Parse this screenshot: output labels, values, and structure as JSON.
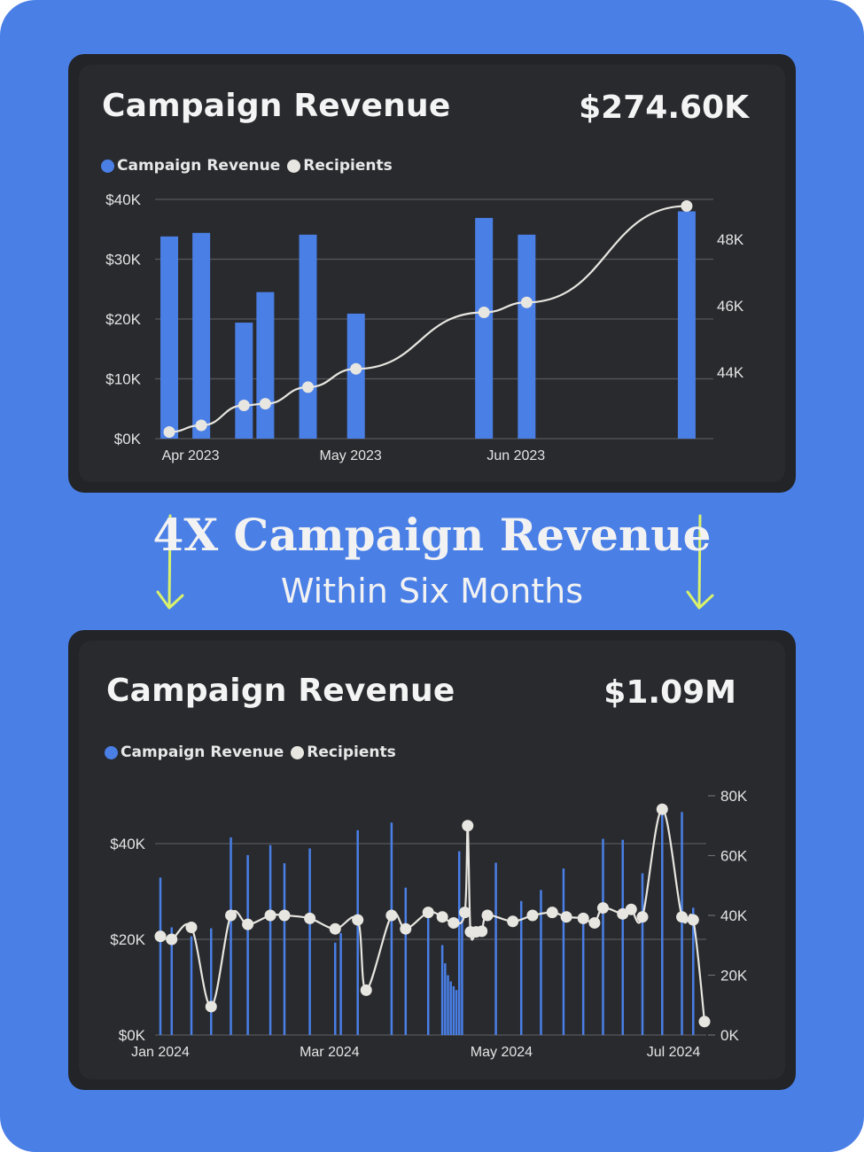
{
  "headline": "4X Campaign Revenue",
  "subheadline": "Within Six Months",
  "colors": {
    "bar": "#4a7fe6",
    "line": "#e8e6e0",
    "arrow": "#d9f26a",
    "background": "#4a7fe6",
    "card": "#282a2e"
  },
  "cards": [
    {
      "title": "Campaign Revenue",
      "total": "$274.60K",
      "legend": [
        "Campaign Revenue",
        "Recipients"
      ]
    },
    {
      "title": "Campaign Revenue",
      "total": "$1.09M",
      "legend": [
        "Campaign Revenue",
        "Recipients"
      ]
    }
  ],
  "chart_data": [
    {
      "type": "bar",
      "title": "Campaign Revenue",
      "x_range": [
        "2023-03-27",
        "2023-07-07"
      ],
      "x_ticks": [
        {
          "date": "2023-04-01",
          "label": "Apr 2023"
        },
        {
          "date": "2023-05-01",
          "label": "May 2023"
        },
        {
          "date": "2023-06-01",
          "label": "Jun 2023"
        }
      ],
      "y_left": {
        "min": 0,
        "max": 40000,
        "ticks": [
          0,
          10000,
          20000,
          30000,
          40000
        ],
        "labels": [
          "$0K",
          "$10K",
          "$20K",
          "$30K",
          "$40K"
        ]
      },
      "y_right": {
        "min": 42000,
        "max": 49200,
        "ticks": [
          44000,
          46000,
          48000
        ],
        "labels": [
          "44K",
          "46K",
          "48K"
        ]
      },
      "series": [
        {
          "name": "Campaign Revenue",
          "type": "bar",
          "axis": "left",
          "points": [
            {
              "date": "2023-03-28",
              "value": 33800
            },
            {
              "date": "2023-04-03",
              "value": 34400
            },
            {
              "date": "2023-04-11",
              "value": 19400
            },
            {
              "date": "2023-04-15",
              "value": 24500
            },
            {
              "date": "2023-04-23",
              "value": 34100
            },
            {
              "date": "2023-05-02",
              "value": 20900
            },
            {
              "date": "2023-05-26",
              "value": 36900
            },
            {
              "date": "2023-06-03",
              "value": 34100
            },
            {
              "date": "2023-07-03",
              "value": 38000
            }
          ]
        },
        {
          "name": "Recipients",
          "type": "line",
          "axis": "right",
          "points": [
            {
              "date": "2023-03-28",
              "value": 42200
            },
            {
              "date": "2023-04-03",
              "value": 42400
            },
            {
              "date": "2023-04-11",
              "value": 43000
            },
            {
              "date": "2023-04-15",
              "value": 43050
            },
            {
              "date": "2023-04-23",
              "value": 43550
            },
            {
              "date": "2023-05-02",
              "value": 44100
            },
            {
              "date": "2023-05-26",
              "value": 45800
            },
            {
              "date": "2023-06-03",
              "value": 46100
            },
            {
              "date": "2023-07-03",
              "value": 49000
            }
          ]
        }
      ]
    },
    {
      "type": "bar",
      "title": "Campaign Revenue",
      "x_range": [
        "2024-01-01",
        "2024-07-12"
      ],
      "x_ticks": [
        {
          "date": "2024-01-01",
          "label": "Jan 2024"
        },
        {
          "date": "2024-03-01",
          "label": "Mar 2024"
        },
        {
          "date": "2024-05-01",
          "label": "May 2024"
        },
        {
          "date": "2024-07-01",
          "label": "Jul 2024"
        }
      ],
      "y_left": {
        "min": 0,
        "max": 50000,
        "ticks": [
          0,
          20000,
          40000
        ],
        "labels": [
          "$0K",
          "$20K",
          "$40K"
        ]
      },
      "y_right": {
        "min": 0,
        "max": 80000,
        "ticks": [
          0,
          20000,
          40000,
          60000,
          80000
        ],
        "labels": [
          "0K",
          "20K",
          "40K",
          "60K",
          "80K"
        ]
      },
      "series": [
        {
          "name": "Campaign Revenue",
          "type": "bar",
          "axis": "left",
          "points": [
            {
              "date": "2024-01-01",
              "value": 32900
            },
            {
              "date": "2024-01-05",
              "value": 22500
            },
            {
              "date": "2024-01-12",
              "value": 20600
            },
            {
              "date": "2024-01-19",
              "value": 22300
            },
            {
              "date": "2024-01-26",
              "value": 41300
            },
            {
              "date": "2024-02-01",
              "value": 37600
            },
            {
              "date": "2024-02-09",
              "value": 39700
            },
            {
              "date": "2024-02-14",
              "value": 35900
            },
            {
              "date": "2024-02-23",
              "value": 39000
            },
            {
              "date": "2024-03-03",
              "value": 19300
            },
            {
              "date": "2024-03-05",
              "value": 21300
            },
            {
              "date": "2024-03-11",
              "value": 42800
            },
            {
              "date": "2024-03-23",
              "value": 44400
            },
            {
              "date": "2024-03-28",
              "value": 30800
            },
            {
              "date": "2024-04-05",
              "value": 24600
            },
            {
              "date": "2024-04-10",
              "value": 18800
            },
            {
              "date": "2024-04-11",
              "value": 15000
            },
            {
              "date": "2024-04-12",
              "value": 12500
            },
            {
              "date": "2024-04-13",
              "value": 11200
            },
            {
              "date": "2024-04-14",
              "value": 10200
            },
            {
              "date": "2024-04-15",
              "value": 9400
            },
            {
              "date": "2024-04-16",
              "value": 38400
            },
            {
              "date": "2024-04-17",
              "value": 26600
            },
            {
              "date": "2024-04-29",
              "value": 36000
            },
            {
              "date": "2024-05-08",
              "value": 28000
            },
            {
              "date": "2024-05-15",
              "value": 30300
            },
            {
              "date": "2024-05-23",
              "value": 34800
            },
            {
              "date": "2024-05-30",
              "value": 23500
            },
            {
              "date": "2024-06-06",
              "value": 41000
            },
            {
              "date": "2024-06-13",
              "value": 40800
            },
            {
              "date": "2024-06-20",
              "value": 33800
            },
            {
              "date": "2024-06-27",
              "value": 46200
            },
            {
              "date": "2024-07-04",
              "value": 46600
            },
            {
              "date": "2024-07-08",
              "value": 26600
            }
          ]
        },
        {
          "name": "Recipients",
          "type": "line",
          "axis": "right",
          "points": [
            {
              "date": "2024-01-01",
              "value": 33000
            },
            {
              "date": "2024-01-05",
              "value": 32000
            },
            {
              "date": "2024-01-12",
              "value": 36000
            },
            {
              "date": "2024-01-19",
              "value": 9500
            },
            {
              "date": "2024-01-26",
              "value": 40000
            },
            {
              "date": "2024-02-01",
              "value": 37000
            },
            {
              "date": "2024-02-09",
              "value": 40000
            },
            {
              "date": "2024-02-14",
              "value": 40000
            },
            {
              "date": "2024-02-23",
              "value": 39000
            },
            {
              "date": "2024-03-03",
              "value": 35500
            },
            {
              "date": "2024-03-11",
              "value": 38500
            },
            {
              "date": "2024-03-14",
              "value": 15000
            },
            {
              "date": "2024-03-23",
              "value": 40000
            },
            {
              "date": "2024-03-28",
              "value": 35500
            },
            {
              "date": "2024-04-05",
              "value": 41000
            },
            {
              "date": "2024-04-10",
              "value": 39500
            },
            {
              "date": "2024-04-14",
              "value": 37500
            },
            {
              "date": "2024-04-18",
              "value": 41000
            },
            {
              "date": "2024-04-19",
              "value": 70000
            },
            {
              "date": "2024-04-20",
              "value": 34500
            },
            {
              "date": "2024-04-22",
              "value": 34500
            },
            {
              "date": "2024-04-24",
              "value": 34700
            },
            {
              "date": "2024-04-26",
              "value": 40000
            },
            {
              "date": "2024-05-05",
              "value": 38000
            },
            {
              "date": "2024-05-12",
              "value": 40000
            },
            {
              "date": "2024-05-19",
              "value": 41000
            },
            {
              "date": "2024-05-24",
              "value": 39500
            },
            {
              "date": "2024-05-30",
              "value": 39000
            },
            {
              "date": "2024-06-03",
              "value": 37500
            },
            {
              "date": "2024-06-06",
              "value": 42500
            },
            {
              "date": "2024-06-13",
              "value": 40500
            },
            {
              "date": "2024-06-16",
              "value": 42000
            },
            {
              "date": "2024-06-20",
              "value": 39500
            },
            {
              "date": "2024-06-27",
              "value": 75500
            },
            {
              "date": "2024-07-04",
              "value": 39500
            },
            {
              "date": "2024-07-08",
              "value": 38500
            },
            {
              "date": "2024-07-12",
              "value": 4500
            }
          ]
        }
      ]
    }
  ]
}
